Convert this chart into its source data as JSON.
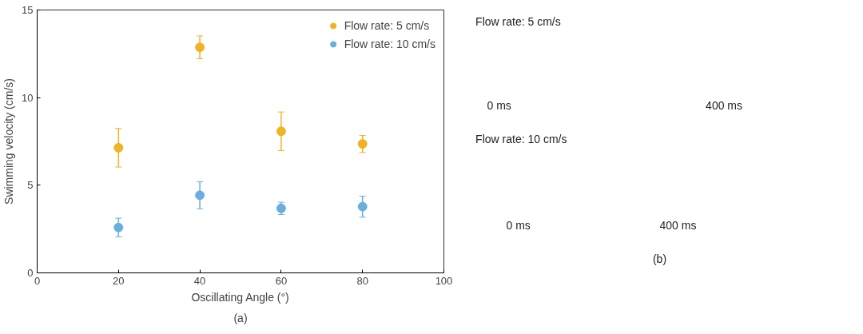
{
  "chart_data": [
    {
      "type": "scatter",
      "xlabel": "Oscillating Angle (°)",
      "ylabel": "Swimming velocity (cm/s)",
      "x": [
        20,
        40,
        60,
        80
      ],
      "series": [
        {
          "name": "Flow rate: 5 cm/s",
          "color": "#f0b323",
          "values": [
            7.14,
            12.87,
            8.08,
            7.36
          ],
          "errors": [
            1.1,
            0.65,
            1.1,
            0.48
          ]
        },
        {
          "name": "Flow rate: 10 cm/s",
          "color": "#6aaee0",
          "values": [
            2.59,
            4.43,
            3.68,
            3.78
          ],
          "errors": [
            0.53,
            0.77,
            0.35,
            0.6
          ]
        }
      ],
      "xlim": [
        0,
        100
      ],
      "xticks": [
        0,
        20,
        40,
        60,
        80,
        100
      ],
      "ylim": [
        0,
        15
      ],
      "yticks": [
        0,
        5,
        10,
        15
      ],
      "grid": false,
      "legend": "top right",
      "marker": "circle",
      "annotations": [
        "(a)"
      ]
    },
    {
      "type": "other",
      "annotations": [
        "Flow rate: 5 cm/s",
        "0 ms",
        "400 ms",
        "Flow rate: 10 cm/s",
        "0 ms",
        "400 ms",
        "(b)"
      ]
    }
  ]
}
